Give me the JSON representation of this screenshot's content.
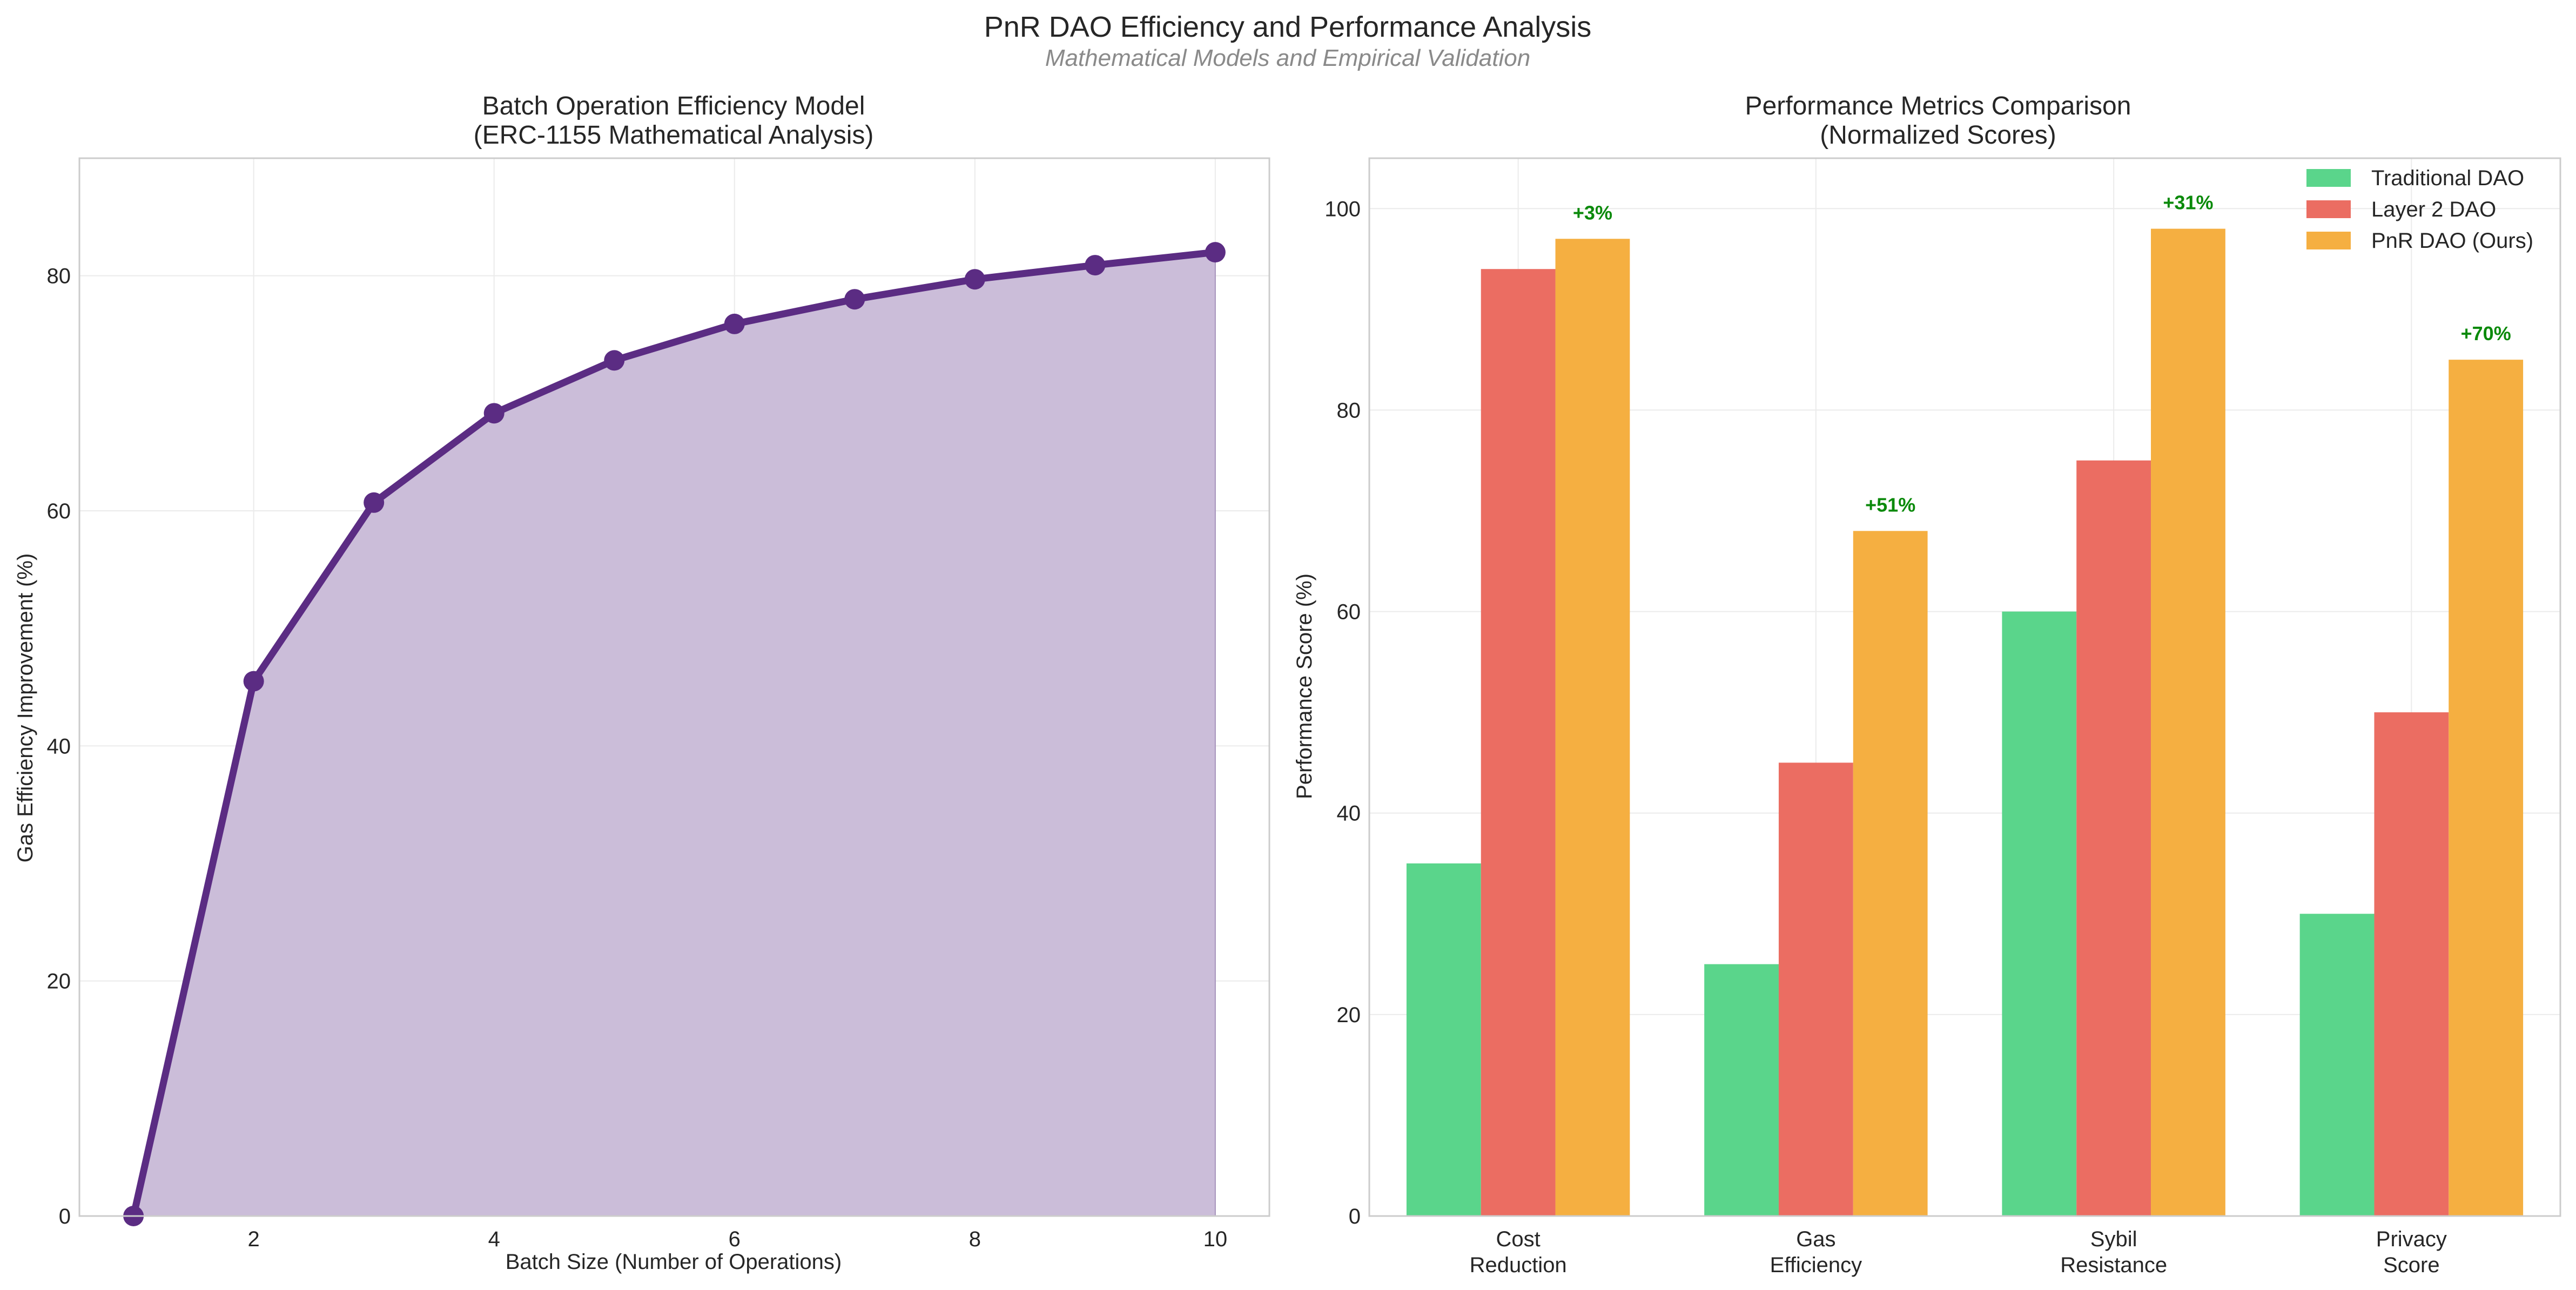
{
  "figure": {
    "title": "PnR DAO Efficiency and Performance Analysis",
    "subtitle": "Mathematical Models and Empirical Validation"
  },
  "chart_data": [
    {
      "type": "area",
      "title_lines": [
        "Batch Operation Efficiency Model",
        "(ERC-1155 Mathematical Analysis)"
      ],
      "xlabel": "Batch Size (Number of Operations)",
      "ylabel": "Gas Efficiency Improvement (%)",
      "x": [
        1,
        2,
        3,
        4,
        5,
        6,
        7,
        8,
        9,
        10
      ],
      "y": [
        0,
        45.5,
        60.7,
        68.3,
        72.8,
        75.9,
        78.0,
        79.7,
        80.9,
        82.0
      ],
      "xlim": [
        0.55,
        10.45
      ],
      "ylim": [
        0,
        90
      ],
      "xticks": [
        2,
        4,
        6,
        8,
        10
      ],
      "yticks": [
        0,
        20,
        40,
        60,
        80
      ],
      "grid": true,
      "line_color": "#5b2c83",
      "fill_color": "#cbbdd9"
    },
    {
      "type": "bar",
      "title_lines": [
        "Performance Metrics Comparison",
        "(Normalized Scores)"
      ],
      "xlabel": "",
      "ylabel": "Performance Score (%)",
      "categories": [
        [
          "Cost",
          "Reduction"
        ],
        [
          "Gas",
          "Efficiency"
        ],
        [
          "Sybil",
          "Resistance"
        ],
        [
          "Privacy",
          "Score"
        ]
      ],
      "series": [
        {
          "name": "Traditional DAO",
          "values": [
            35,
            25,
            60,
            30
          ],
          "color": "#5ad58b"
        },
        {
          "name": "Layer 2 DAO",
          "values": [
            94,
            45,
            75,
            50
          ],
          "color": "#eb6d62"
        },
        {
          "name": "PnR DAO (Ours)",
          "values": [
            97,
            68,
            98,
            85
          ],
          "color": "#f5af41"
        }
      ],
      "annotations": [
        "+3%",
        "+51%",
        "+31%",
        "+70%"
      ],
      "annotation_color": "#0b8a0b",
      "ylim": [
        0,
        105
      ],
      "yticks": [
        0,
        20,
        40,
        60,
        80,
        100
      ],
      "grid": true,
      "legend": "top-right"
    }
  ]
}
